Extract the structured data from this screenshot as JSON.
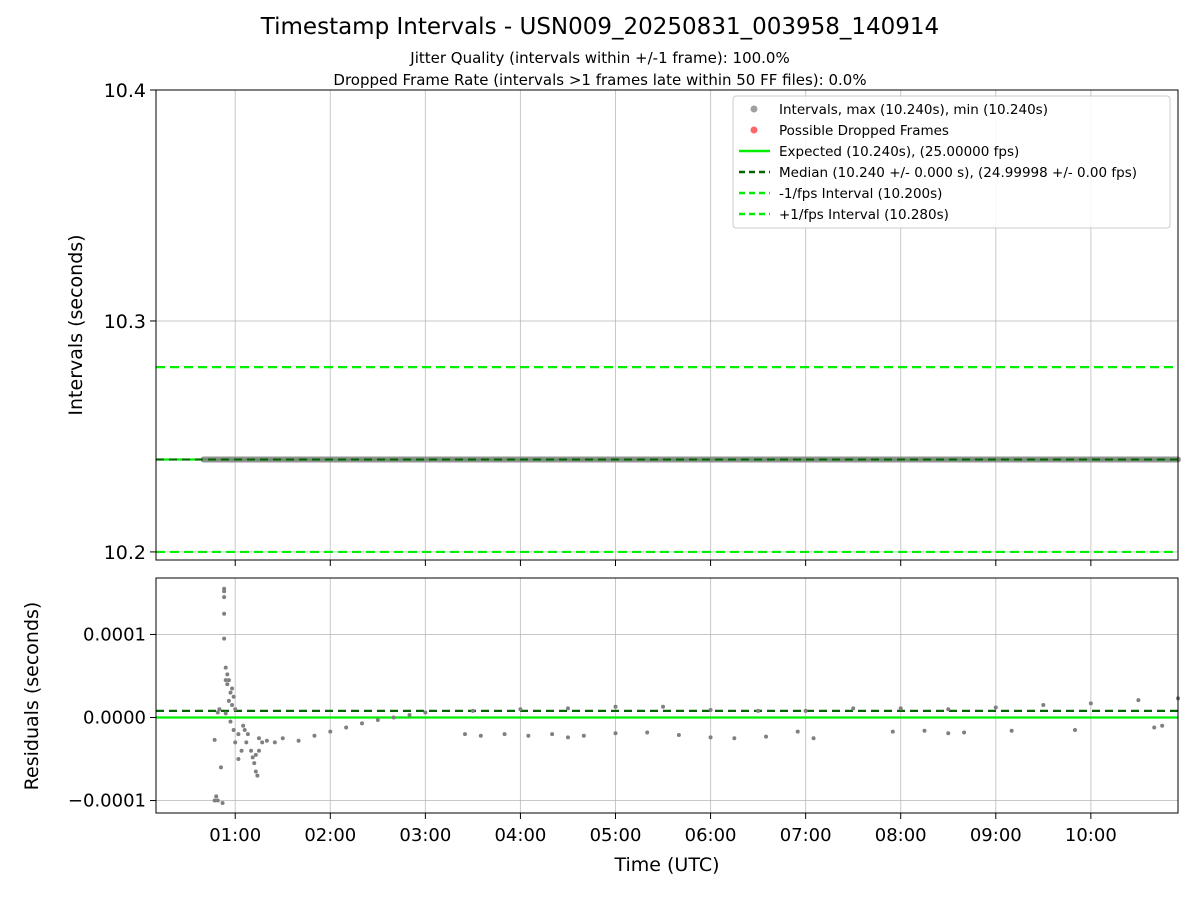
{
  "header": {
    "title": "Timestamp Intervals - USN009_20250831_003958_140914",
    "subtitle_jitter": "Jitter Quality (intervals within +/-1 frame): 100.0%",
    "subtitle_dropped": "Dropped Frame Rate (intervals >1 frames late within 50 FF files): 0.0%"
  },
  "colors": {
    "points": "#808080",
    "dropped": "#ff6666",
    "expected": "#00ee00",
    "median": "#006400",
    "limits": "#00ee00",
    "grid": "#b0b0b0"
  },
  "chart_data": [
    {
      "type": "scatter",
      "panel": "intervals",
      "xlabel": "",
      "ylabel": "Intervals (seconds)",
      "x_range": [
        "00:10",
        "10:55"
      ],
      "ylim": [
        10.1965,
        10.4
      ],
      "yticks": [
        10.2,
        10.3,
        10.4
      ],
      "ytick_labels": [
        "10.2",
        "10.3",
        "10.4"
      ],
      "grid": true,
      "legend_position": "top-right",
      "legend": [
        {
          "label": "Intervals, max (10.240s), min (10.240s)",
          "marker": "point",
          "color": "#a0a0a0"
        },
        {
          "label": "Possible Dropped Frames",
          "marker": "point",
          "color": "#ff6666"
        },
        {
          "label": "Expected (10.240s), (25.00000 fps)",
          "marker": "solid",
          "color": "#00ee00"
        },
        {
          "label": "Median (10.240 +/- 0.000 s), (24.99998 +/- 0.00 fps)",
          "marker": "dashed",
          "color": "#006400"
        },
        {
          "label": "-1/fps Interval (10.200s)",
          "marker": "dashed",
          "color": "#00ee00"
        },
        {
          "label": "+1/fps Interval (10.280s)",
          "marker": "dashed",
          "color": "#00ee00"
        }
      ],
      "series": [
        {
          "name": "Intervals, max (10.240s), min (10.240s)",
          "x_start": "00:40",
          "x_end": "10:55",
          "y": 10.24
        },
        {
          "name": "Possible Dropped Frames",
          "points": []
        }
      ],
      "hlines": [
        {
          "name": "Expected (10.240s), (25.00000 fps)",
          "y": 10.24,
          "style": "solid"
        },
        {
          "name": "Median (10.240 +/- 0.000 s), (24.99998 +/- 0.00 fps)",
          "y": 10.24,
          "style": "dashed"
        },
        {
          "name": "-1/fps Interval (10.200s)",
          "y": 10.2,
          "style": "dashed"
        },
        {
          "name": "+1/fps Interval (10.280s)",
          "y": 10.28,
          "style": "dashed"
        }
      ]
    },
    {
      "type": "scatter",
      "panel": "residuals",
      "xlabel": "Time (UTC)",
      "ylabel": "Residuals (seconds)",
      "x_range": [
        "00:10",
        "10:55"
      ],
      "xticks": [
        "01:00",
        "02:00",
        "03:00",
        "04:00",
        "05:00",
        "06:00",
        "07:00",
        "08:00",
        "09:00",
        "10:00"
      ],
      "ylim": [
        -0.000115,
        0.000168
      ],
      "yticks": [
        -0.0001,
        0.0,
        0.0001
      ],
      "ytick_labels": [
        "−0.0001",
        "0.0000",
        "0.0001"
      ],
      "grid": true,
      "hlines": [
        {
          "name": "Expected",
          "y": 0.0,
          "style": "solid"
        },
        {
          "name": "Median",
          "y": 8e-06,
          "style": "dashed"
        }
      ],
      "series": [
        {
          "name": "Residuals",
          "points": [
            [
              "00:47",
              -0.0001
            ],
            [
              "00:48",
              -9.5e-05
            ],
            [
              "00:49",
              -0.0001
            ],
            [
              "00:52",
              -0.000103
            ],
            [
              "00:51",
              -6e-05
            ],
            [
              "00:47",
              -2.7e-05
            ],
            [
              "00:50",
              1e-05
            ],
            [
              "00:49",
              6e-06
            ],
            [
              "00:53",
              0.000155
            ],
            [
              "00:53",
              0.000152
            ],
            [
              "00:53",
              0.000145
            ],
            [
              "00:53",
              0.000125
            ],
            [
              "00:53",
              9.5e-05
            ],
            [
              "00:54",
              6e-05
            ],
            [
              "00:54",
              4.5e-05
            ],
            [
              "00:55",
              5.2e-05
            ],
            [
              "00:55",
              4e-05
            ],
            [
              "00:56",
              4.5e-05
            ],
            [
              "00:57",
              3e-05
            ],
            [
              "00:58",
              3.5e-05
            ],
            [
              "00:59",
              2.5e-05
            ],
            [
              "00:56",
              2e-05
            ],
            [
              "00:58",
              1.5e-05
            ],
            [
              "00:54",
              5e-06
            ],
            [
              "00:57",
              -5e-06
            ],
            [
              "00:59",
              -1.5e-05
            ],
            [
              "01:00",
              1e-05
            ],
            [
              "01:00",
              -3e-05
            ],
            [
              "01:02",
              -2e-05
            ],
            [
              "01:02",
              -5e-05
            ],
            [
              "01:04",
              -4e-05
            ],
            [
              "01:05",
              -1e-05
            ],
            [
              "01:06",
              -1.5e-05
            ],
            [
              "01:07",
              -3e-05
            ],
            [
              "01:08",
              -2e-05
            ],
            [
              "01:10",
              -4e-05
            ],
            [
              "01:11",
              -4.8e-05
            ],
            [
              "01:12",
              -5.5e-05
            ],
            [
              "01:13",
              -6.5e-05
            ],
            [
              "01:14",
              -7e-05
            ],
            [
              "01:13",
              -4.5e-05
            ],
            [
              "01:15",
              -4e-05
            ],
            [
              "01:15",
              -2.5e-05
            ],
            [
              "01:17",
              -3e-05
            ],
            [
              "01:20",
              -2.8e-05
            ],
            [
              "01:25",
              -3e-05
            ],
            [
              "01:30",
              -2.5e-05
            ],
            [
              "01:40",
              -2.8e-05
            ],
            [
              "01:50",
              -2.2e-05
            ],
            [
              "02:00",
              -1.7e-05
            ],
            [
              "02:10",
              -1.2e-05
            ],
            [
              "02:20",
              -7e-06
            ],
            [
              "02:30",
              -3e-06
            ],
            [
              "02:40",
              0.0
            ],
            [
              "02:50",
              3e-06
            ],
            [
              "03:00",
              6e-06
            ],
            [
              "03:30",
              8e-06
            ],
            [
              "04:00",
              1e-05
            ],
            [
              "04:30",
              1.1e-05
            ],
            [
              "05:00",
              1.3e-05
            ],
            [
              "05:30",
              1.3e-05
            ],
            [
              "06:00",
              9e-06
            ],
            [
              "06:30",
              8e-06
            ],
            [
              "07:00",
              8e-06
            ],
            [
              "07:30",
              1.1e-05
            ],
            [
              "08:00",
              1.1e-05
            ],
            [
              "08:30",
              1e-05
            ],
            [
              "09:00",
              1.2e-05
            ],
            [
              "09:30",
              1.5e-05
            ],
            [
              "10:00",
              1.7e-05
            ],
            [
              "10:30",
              2.1e-05
            ],
            [
              "10:55",
              2.3e-05
            ],
            [
              "03:25",
              -2e-05
            ],
            [
              "03:35",
              -2.2e-05
            ],
            [
              "03:50",
              -2e-05
            ],
            [
              "04:05",
              -2.2e-05
            ],
            [
              "04:20",
              -2e-05
            ],
            [
              "04:30",
              -2.4e-05
            ],
            [
              "04:40",
              -2.2e-05
            ],
            [
              "05:00",
              -1.9e-05
            ],
            [
              "05:20",
              -1.8e-05
            ],
            [
              "05:40",
              -2.1e-05
            ],
            [
              "06:00",
              -2.4e-05
            ],
            [
              "06:15",
              -2.5e-05
            ],
            [
              "06:35",
              -2.3e-05
            ],
            [
              "06:55",
              -1.7e-05
            ],
            [
              "07:05",
              -2.5e-05
            ],
            [
              "07:55",
              -1.7e-05
            ],
            [
              "08:15",
              -1.6e-05
            ],
            [
              "08:30",
              -1.9e-05
            ],
            [
              "08:40",
              -1.8e-05
            ],
            [
              "09:10",
              -1.6e-05
            ],
            [
              "09:50",
              -1.5e-05
            ],
            [
              "10:40",
              -1.2e-05
            ],
            [
              "10:45",
              -1e-05
            ]
          ]
        }
      ]
    }
  ]
}
